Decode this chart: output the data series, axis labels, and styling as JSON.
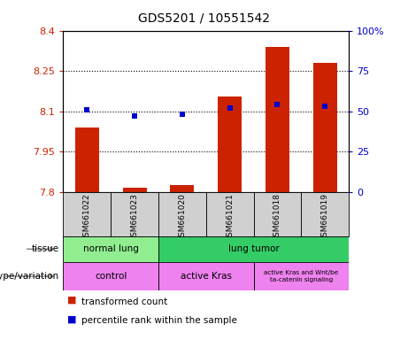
{
  "title": "GDS5201 / 10551542",
  "samples": [
    "GSM661022",
    "GSM661023",
    "GSM661020",
    "GSM661021",
    "GSM661018",
    "GSM661019"
  ],
  "bar_values": [
    8.04,
    7.815,
    7.825,
    8.155,
    8.34,
    8.28
  ],
  "bar_bottom": 7.8,
  "percentile_values": [
    51,
    47,
    48,
    52,
    54,
    53
  ],
  "ylim_left": [
    7.8,
    8.4
  ],
  "ylim_right": [
    0,
    100
  ],
  "yticks_left": [
    7.8,
    7.95,
    8.1,
    8.25,
    8.4
  ],
  "yticks_right": [
    0,
    25,
    50,
    75,
    100
  ],
  "ytick_labels_left": [
    "7.8",
    "7.95",
    "8.1",
    "8.25",
    "8.4"
  ],
  "ytick_labels_right": [
    "0",
    "25",
    "50",
    "75",
    "100%"
  ],
  "hlines": [
    7.95,
    8.1,
    8.25
  ],
  "bar_color": "#cc2200",
  "percentile_color": "#0000cc",
  "tissue_normal_color": "#90ee90",
  "tissue_tumor_color": "#33cc66",
  "genotype_color": "#ee82ee",
  "sample_label_bg": "#d0d0d0",
  "background_color": "#ffffff"
}
